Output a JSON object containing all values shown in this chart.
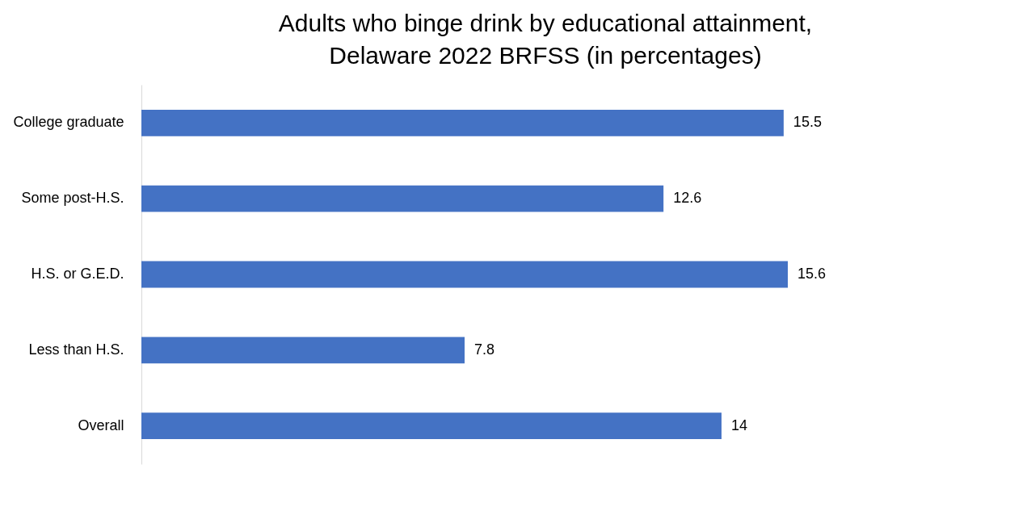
{
  "chart_data": {
    "type": "bar",
    "orientation": "horizontal",
    "title": "Adults who binge drink by educational attainment, Delaware 2022 BRFSS (in percentages)",
    "categories": [
      "College graduate",
      "Some post-H.S.",
      "H.S. or G.E.D.",
      "Less than H.S.",
      "Overall"
    ],
    "values": [
      15.5,
      12.6,
      15.6,
      7.8,
      14
    ],
    "color": "#4472c4",
    "data_labels": true
  }
}
